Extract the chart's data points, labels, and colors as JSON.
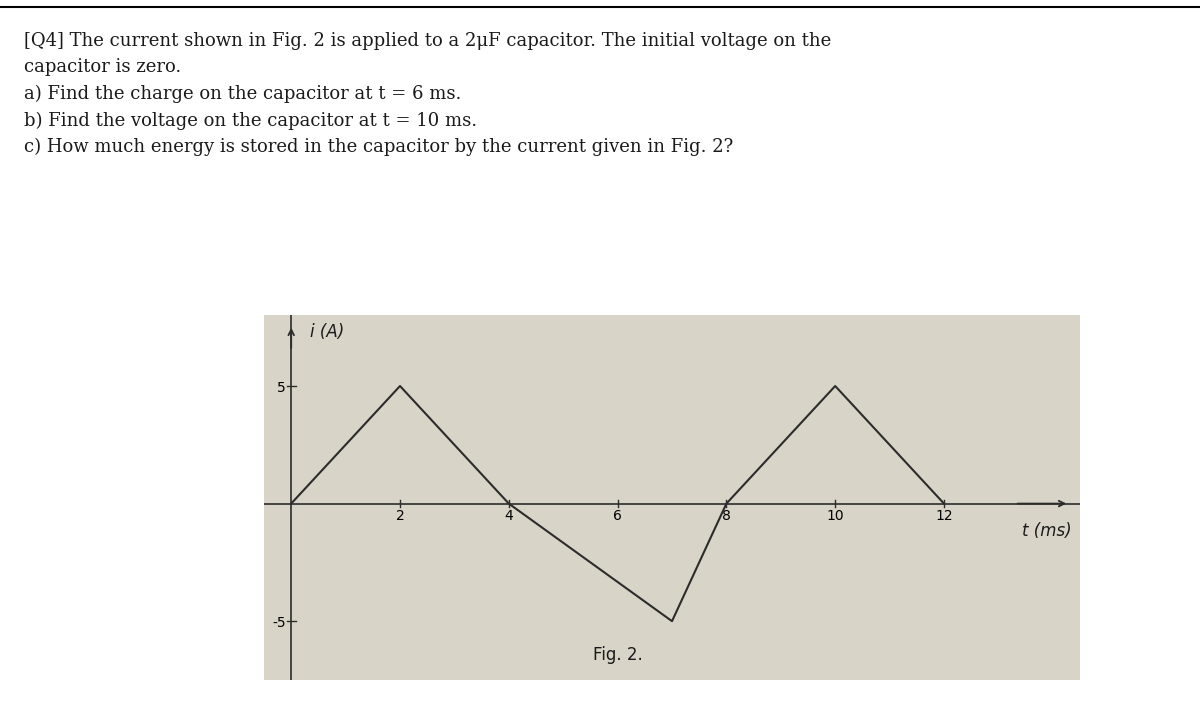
{
  "title_text": "[Q4] The current shown in Fig. 2 is applied to a 2μF capacitor. The initial voltage on the\ncapacitor is zero.\na) Find the charge on the capacitor at t = 6 ms.\nb) Find the voltage on the capacitor at t = 10 ms.\nc) How much energy is stored in the capacitor by the current given in Fig. 2?",
  "fig_label": "Fig. 2.",
  "ylabel": "i (A)",
  "xlabel": "t (ms)",
  "signal_t": [
    0,
    2,
    4,
    7,
    8,
    10,
    12
  ],
  "signal_i": [
    0,
    5,
    0,
    -5,
    0,
    5,
    0
  ],
  "xticks": [
    2,
    4,
    6,
    8,
    10,
    12
  ],
  "yticks": [
    -5,
    5
  ],
  "ytick_labels": [
    "-5",
    "5"
  ],
  "xlim": [
    -0.5,
    14.5
  ],
  "ylim": [
    -7.5,
    8.0
  ],
  "line_color": "#2c2c2c",
  "bg_color": "#d9d4c8",
  "text_color": "#1a1a1a",
  "fig_width": 12.0,
  "fig_height": 7.01,
  "title_fontsize": 13,
  "axis_label_fontsize": 12,
  "tick_fontsize": 11
}
